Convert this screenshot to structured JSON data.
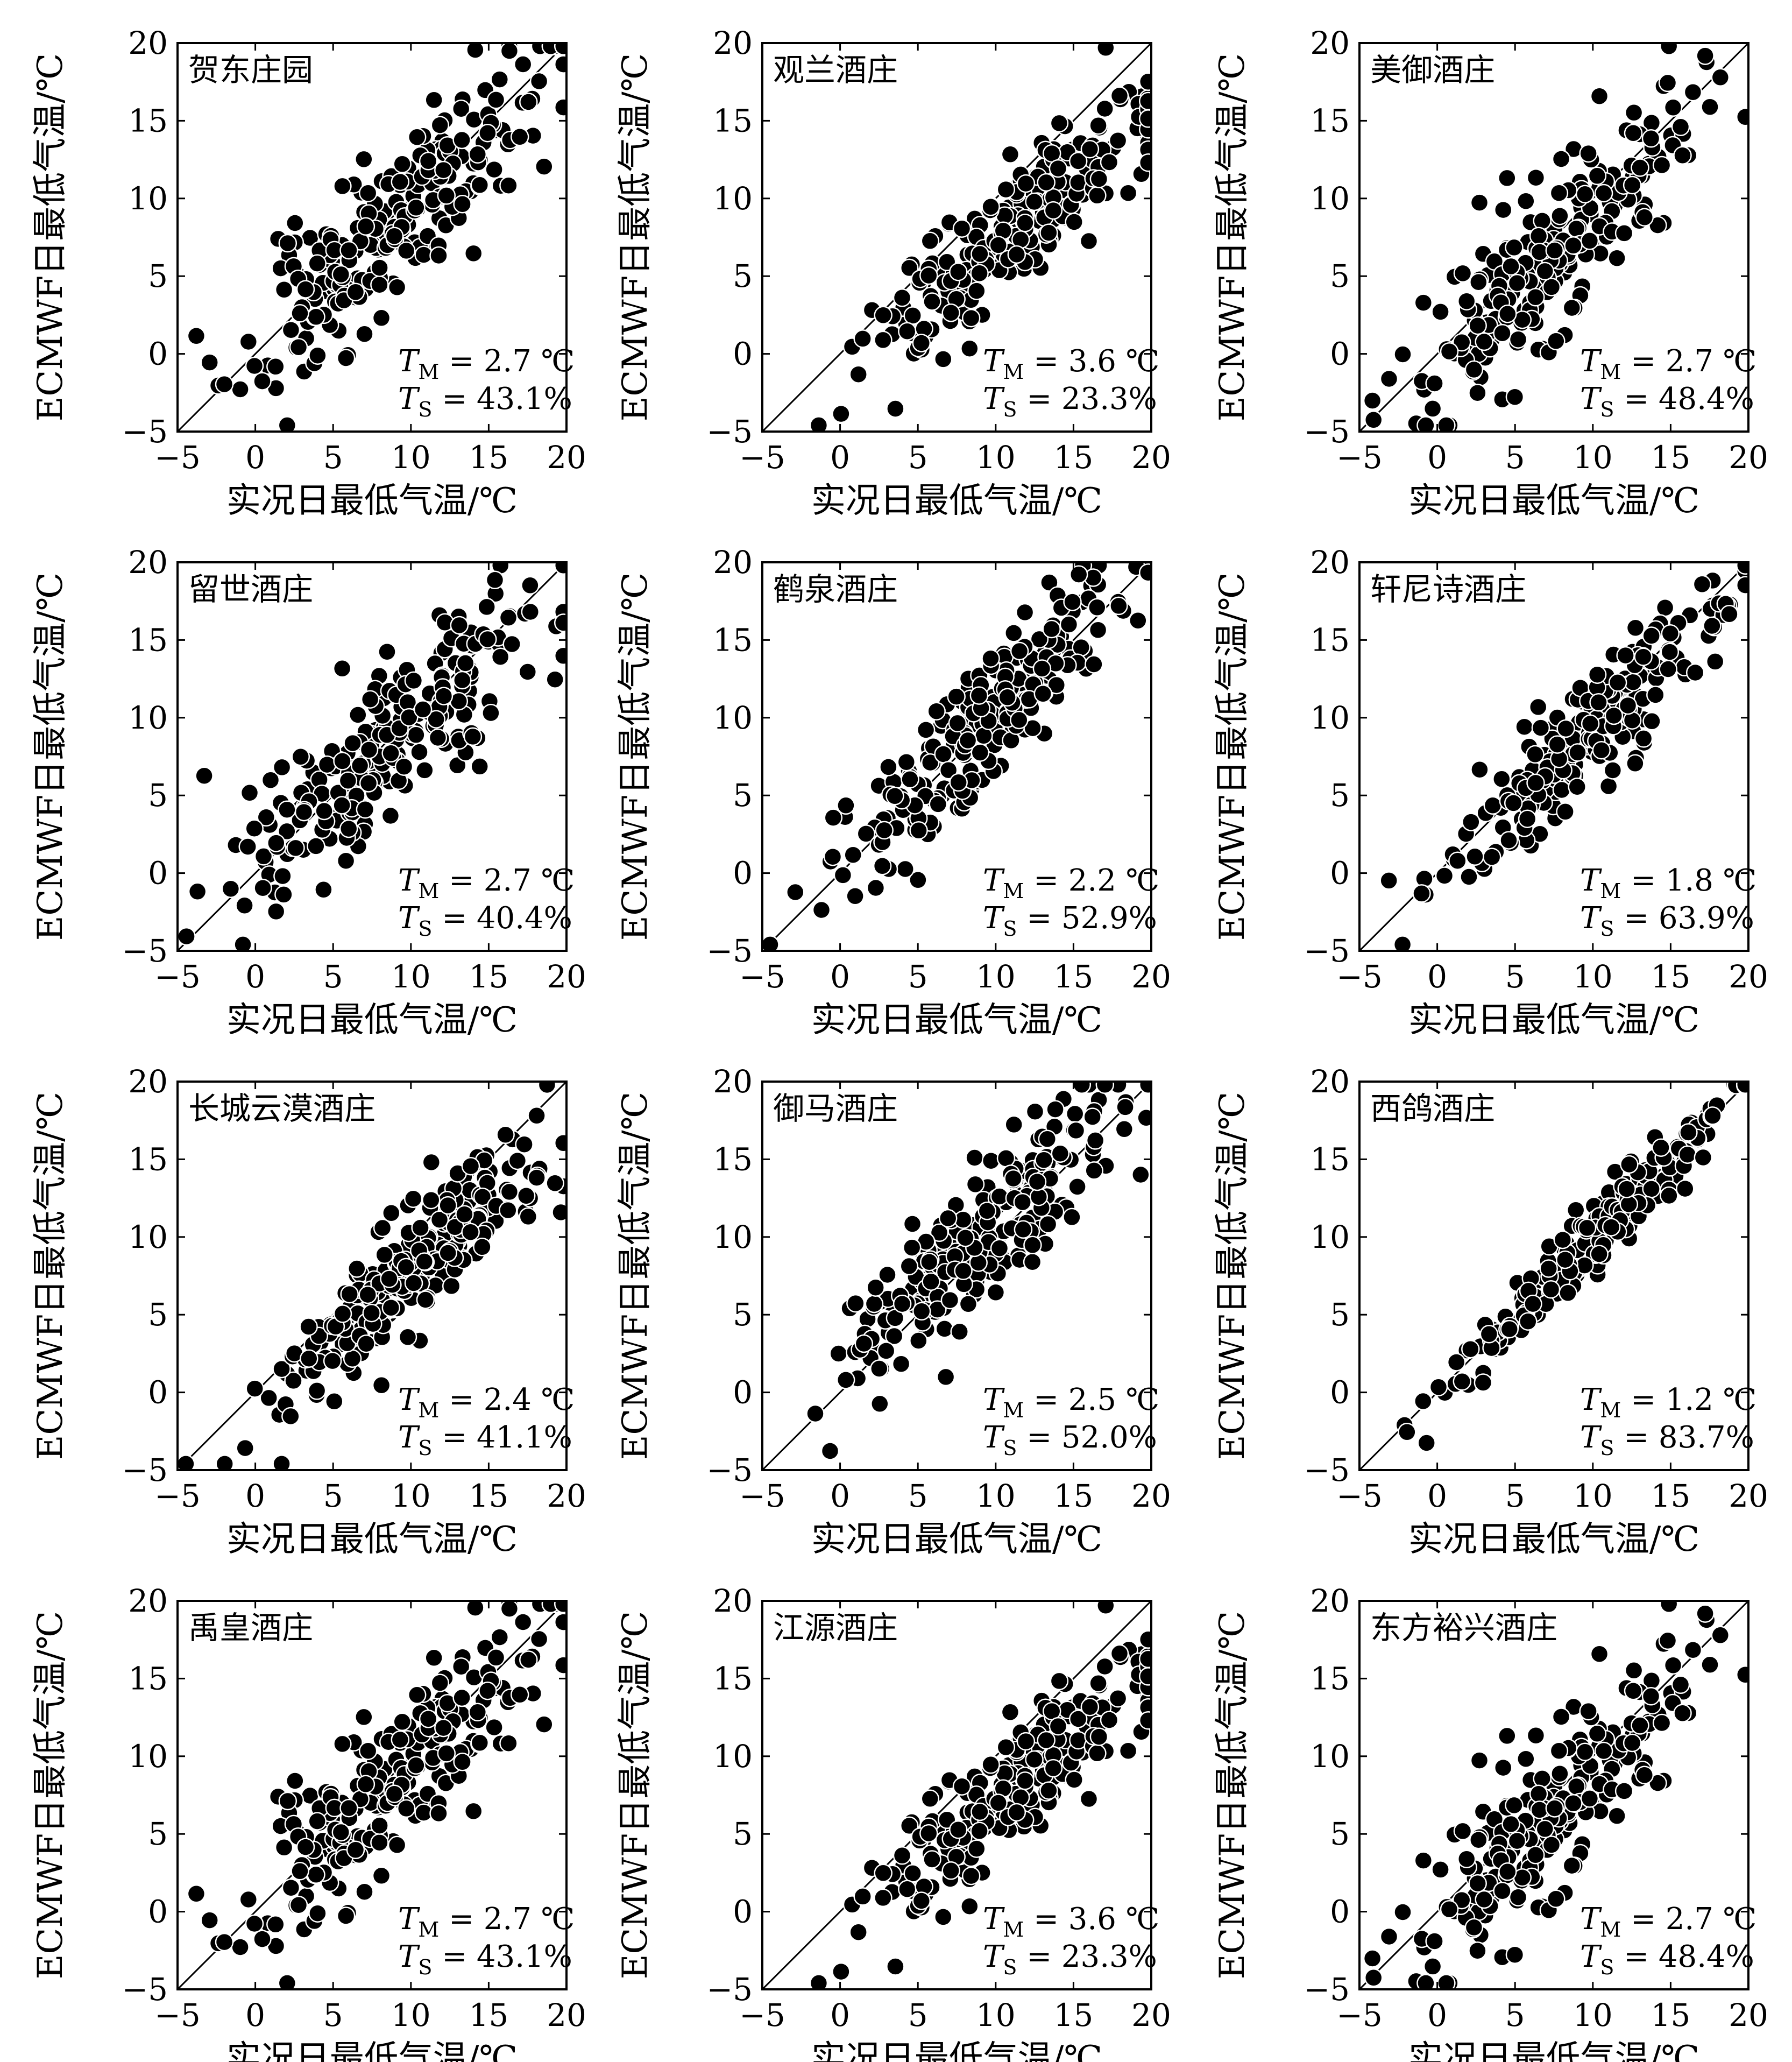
{
  "axes": {
    "xlabel": "实况日最低气温/℃",
    "ylabel": "ECMWF日最低气温/℃",
    "xlim": [
      -5,
      20
    ],
    "ylim": [
      -5,
      20
    ],
    "ticks": [
      "−5",
      "0",
      "5",
      "10",
      "15",
      "20"
    ]
  },
  "chart_data": [
    {
      "type": "scatter",
      "title": "贺东庄园",
      "tm": "2.7 ℃",
      "ts": "43.1%",
      "cx": 8.5,
      "cy": 8.0,
      "sd": 4.6,
      "slope": 0.92,
      "noise": 2.6,
      "seed": 11
    },
    {
      "type": "scatter",
      "title": "观兰酒庄",
      "tm": "3.6 ℃",
      "ts": "23.3%",
      "cx": 11.0,
      "cy": 7.8,
      "sd": 4.8,
      "slope": 0.88,
      "noise": 2.0,
      "seed": 23
    },
    {
      "type": "scatter",
      "title": "美御酒庄",
      "tm": "2.7 ℃",
      "ts": "48.4%",
      "cx": 8.0,
      "cy": 7.0,
      "sd": 4.5,
      "slope": 0.95,
      "noise": 2.5,
      "seed": 37
    },
    {
      "type": "scatter",
      "title": "留世酒庄",
      "tm": "2.7 ℃",
      "ts": "40.4%",
      "cx": 8.5,
      "cy": 8.5,
      "sd": 4.6,
      "slope": 0.85,
      "noise": 2.8,
      "seed": 41
    },
    {
      "type": "scatter",
      "title": "鹤泉酒庄",
      "tm": "2.2 ℃",
      "ts": "52.9%",
      "cx": 9.0,
      "cy": 9.5,
      "sd": 4.4,
      "slope": 0.98,
      "noise": 2.1,
      "seed": 53
    },
    {
      "type": "scatter",
      "title": "轩尼诗酒庄",
      "tm": "1.8 ℃",
      "ts": "63.9%",
      "cx": 9.5,
      "cy": 9.0,
      "sd": 4.7,
      "slope": 0.96,
      "noise": 1.8,
      "seed": 67
    },
    {
      "type": "scatter",
      "title": "长城云漠酒庄",
      "tm": "2.4 ℃",
      "ts": "41.1%",
      "cx": 10.0,
      "cy": 8.0,
      "sd": 4.8,
      "slope": 0.95,
      "noise": 1.9,
      "seed": 71
    },
    {
      "type": "scatter",
      "title": "御马酒庄",
      "tm": "2.5 ℃",
      "ts": "52.0%",
      "cx": 8.5,
      "cy": 9.5,
      "sd": 4.8,
      "slope": 0.96,
      "noise": 2.4,
      "seed": 83
    },
    {
      "type": "scatter",
      "title": "西鸽酒庄",
      "tm": "1.2 ℃",
      "ts": "83.7%",
      "cx": 10.0,
      "cy": 9.8,
      "sd": 4.7,
      "slope": 0.99,
      "noise": 1.1,
      "seed": 97
    },
    {
      "type": "scatter",
      "title": "禹皇酒庄",
      "tm": "2.7 ℃",
      "ts": "43.1%",
      "cx": 8.5,
      "cy": 8.0,
      "sd": 4.6,
      "slope": 0.92,
      "noise": 2.6,
      "seed": 11
    },
    {
      "type": "scatter",
      "title": "江源酒庄",
      "tm": "3.6 ℃",
      "ts": "23.3%",
      "cx": 11.0,
      "cy": 7.8,
      "sd": 4.8,
      "slope": 0.88,
      "noise": 2.0,
      "seed": 23
    },
    {
      "type": "scatter",
      "title": "东方裕兴酒庄",
      "tm": "2.7 ℃",
      "ts": "48.4%",
      "cx": 8.0,
      "cy": 7.0,
      "sd": 4.5,
      "slope": 0.95,
      "noise": 2.5,
      "seed": 37
    }
  ]
}
